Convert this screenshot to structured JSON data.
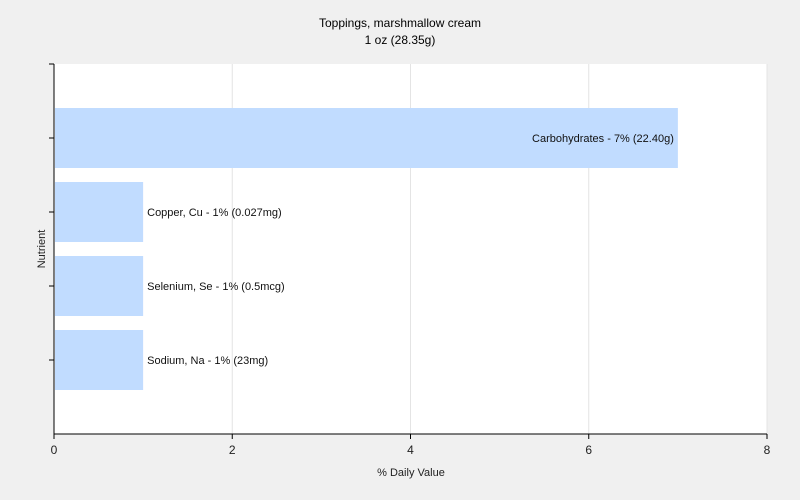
{
  "chart_data": {
    "type": "bar",
    "orientation": "horizontal",
    "title": "Toppings, marshmallow cream",
    "subtitle": "1 oz (28.35g)",
    "xlabel": "% Daily Value",
    "ylabel": "Nutrient",
    "xlim": [
      0,
      8
    ],
    "xticks": [
      "0",
      "2",
      "4",
      "6",
      "8"
    ],
    "grid": "vertical",
    "bar_color": "#c1dcff",
    "bars": [
      {
        "value": 7,
        "label": "Carbohydrates - 7% (22.40g)",
        "label_position": "inside"
      },
      {
        "value": 1,
        "label": "Copper, Cu - 1% (0.027mg)",
        "label_position": "outside"
      },
      {
        "value": 1,
        "label": "Selenium, Se - 1% (0.5mcg)",
        "label_position": "outside"
      },
      {
        "value": 1,
        "label": "Sodium, Na - 1% (23mg)",
        "label_position": "outside"
      }
    ]
  }
}
